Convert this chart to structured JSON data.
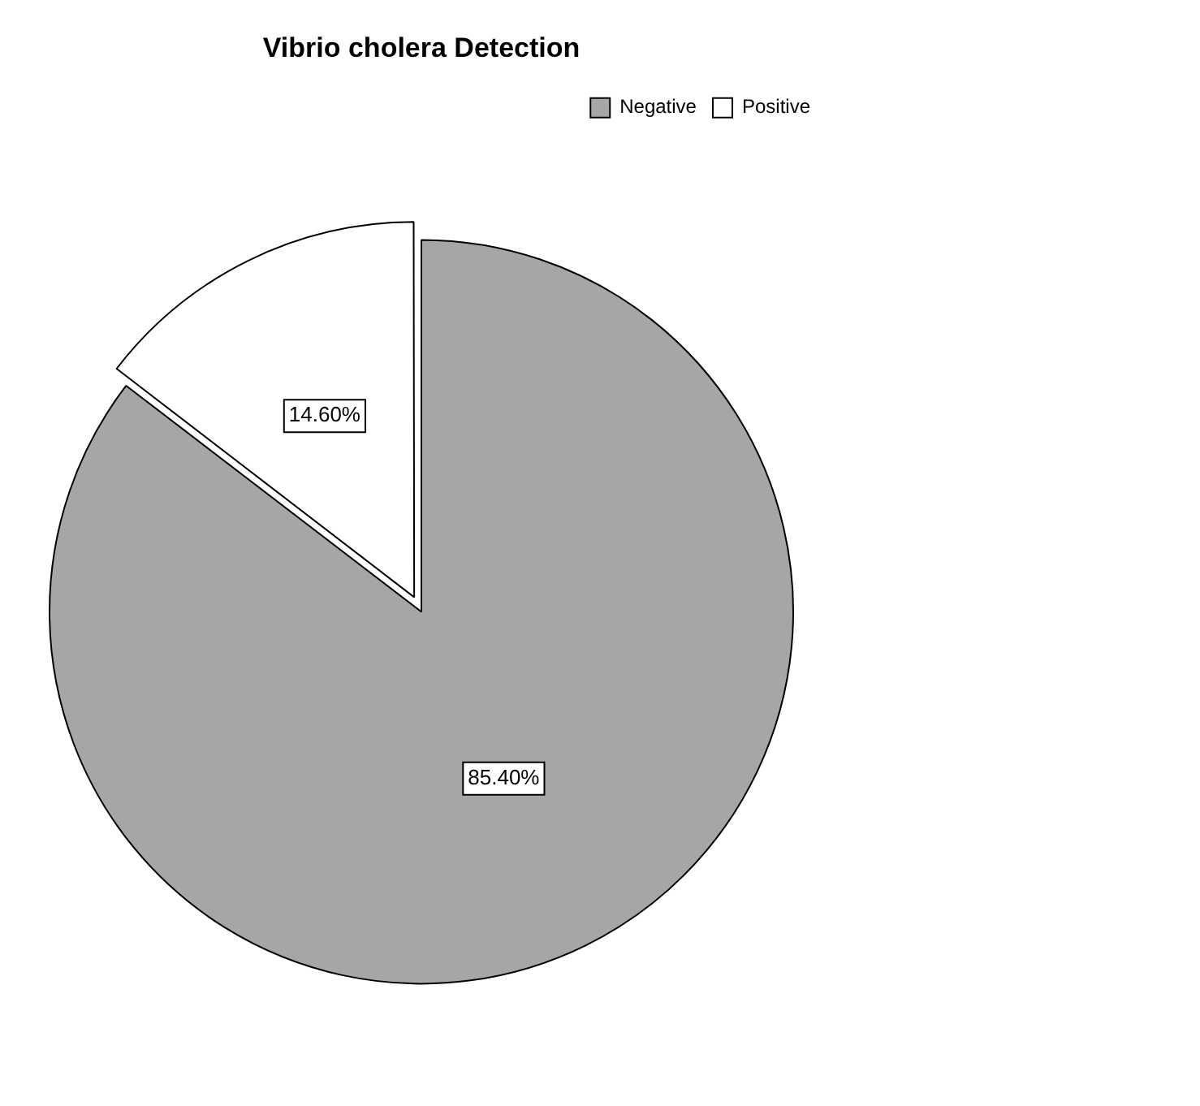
{
  "chart_data": {
    "type": "pie",
    "title": "Vibrio cholera Detection",
    "categories": [
      "Negative",
      "Positive"
    ],
    "values": [
      85.4,
      14.6
    ],
    "colors": [
      "#a6a6a6",
      "#ffffff"
    ],
    "value_labels": [
      "85.40%",
      "14.60%"
    ],
    "legend": "top right"
  }
}
